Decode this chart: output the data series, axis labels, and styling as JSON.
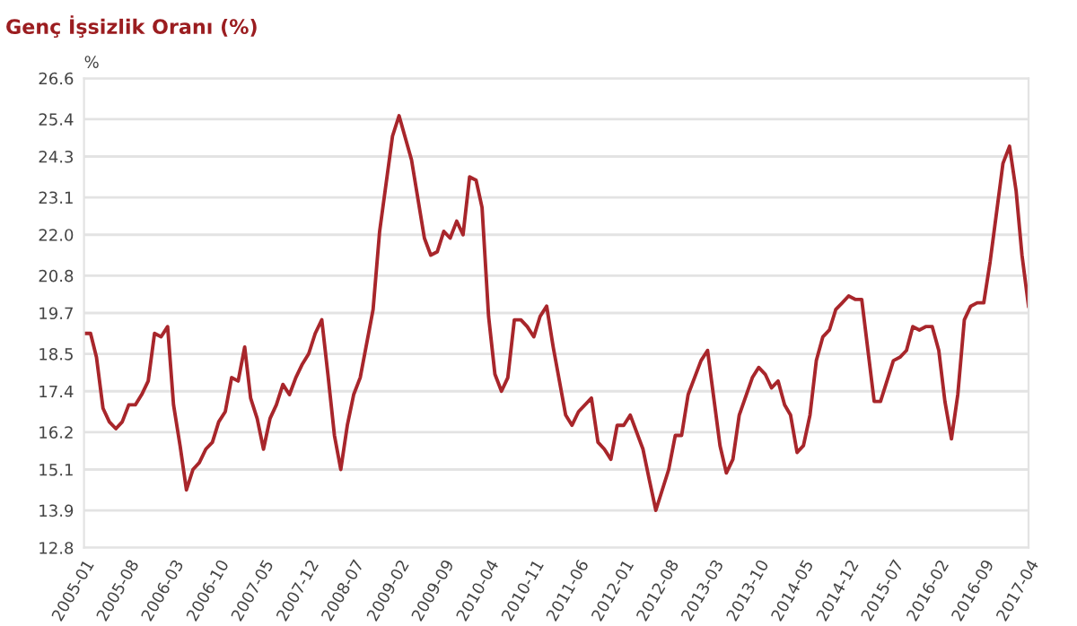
{
  "chart_data": {
    "type": "line",
    "title": "Genç İşsizlik Oranı (%)",
    "ylabel": "%",
    "x": [
      "2005-01",
      "2005-02",
      "2005-03",
      "2005-04",
      "2005-05",
      "2005-06",
      "2005-07",
      "2005-08",
      "2005-09",
      "2005-10",
      "2005-11",
      "2005-12",
      "2006-01",
      "2006-02",
      "2006-03",
      "2006-04",
      "2006-05",
      "2006-06",
      "2006-07",
      "2006-08",
      "2006-09",
      "2006-10",
      "2006-11",
      "2006-12",
      "2007-01",
      "2007-02",
      "2007-03",
      "2007-04",
      "2007-05",
      "2007-06",
      "2007-07",
      "2007-08",
      "2007-09",
      "2007-10",
      "2007-11",
      "2007-12",
      "2008-01",
      "2008-02",
      "2008-03",
      "2008-04",
      "2008-05",
      "2008-06",
      "2008-07",
      "2008-08",
      "2008-10",
      "2008-11",
      "2009-01",
      "2009-02",
      "2009-04",
      "2009-06",
      "2009-07",
      "2009-08",
      "2009-09",
      "2009-10",
      "2009-11",
      "2009-12",
      "2010-01",
      "2010-02",
      "2010-03",
      "2010-04",
      "2010-05",
      "2010-06",
      "2010-07",
      "2010-08",
      "2010-09",
      "2010-10",
      "2010-11",
      "2010-12",
      "2011-01",
      "2011-02",
      "2011-04",
      "2011-05",
      "2011-06",
      "2011-08",
      "2011-09",
      "2011-10",
      "2011-11",
      "2011-12",
      "2012-01",
      "2012-02",
      "2012-04",
      "2012-05",
      "2012-06",
      "2012-08",
      "2012-09",
      "2012-10",
      "2012-11",
      "2013-01",
      "2013-02",
      "2013-04",
      "2013-05",
      "2013-06",
      "2013-07",
      "2013-09",
      "2013-10",
      "2013-11",
      "2013-12",
      "2014-01",
      "2014-02",
      "2014-03",
      "2014-04",
      "2014-05",
      "2014-06",
      "2014-07",
      "2014-08",
      "2014-09",
      "2014-10",
      "2014-11",
      "2014-12",
      "2015-01",
      "2015-02",
      "2015-04",
      "2015-05",
      "2015-07",
      "2015-08",
      "2015-09",
      "2015-10",
      "2015-11",
      "2015-12",
      "2016-01",
      "2016-02",
      "2016-03",
      "2016-04",
      "2016-05",
      "2016-06",
      "2016-07",
      "2016-08",
      "2016-09",
      "2016-10",
      "2016-12",
      "2017-01",
      "2017-02",
      "2017-03",
      "2017-04"
    ],
    "series": [
      {
        "color": "#a8262b",
        "values": [
          19.1,
          19.1,
          18.4,
          16.9,
          16.5,
          16.3,
          16.5,
          17.0,
          17.0,
          17.3,
          17.7,
          19.1,
          19.0,
          19.3,
          17.0,
          15.8,
          14.5,
          15.1,
          15.3,
          15.7,
          15.9,
          16.5,
          16.8,
          17.8,
          17.7,
          18.7,
          17.2,
          16.6,
          15.7,
          16.6,
          17.0,
          17.6,
          17.3,
          17.8,
          18.2,
          18.5,
          19.1,
          19.5,
          17.9,
          16.1,
          15.1,
          16.4,
          17.3,
          17.8,
          19.8,
          22.1,
          24.9,
          25.5,
          24.2,
          21.9,
          21.4,
          21.5,
          22.1,
          21.9,
          22.4,
          22.0,
          23.7,
          23.6,
          22.8,
          19.6,
          17.9,
          17.4,
          17.8,
          19.5,
          19.5,
          19.3,
          19.0,
          19.6,
          19.9,
          18.7,
          16.7,
          16.4,
          16.8,
          17.2,
          15.9,
          15.7,
          15.4,
          16.4,
          16.4,
          16.7,
          15.7,
          14.8,
          13.9,
          15.1,
          16.1,
          16.1,
          17.3,
          18.3,
          18.6,
          15.8,
          15.0,
          15.4,
          16.7,
          17.8,
          18.1,
          17.9,
          17.5,
          17.7,
          17.0,
          16.7,
          15.6,
          15.8,
          16.7,
          18.3,
          19.0,
          19.2,
          19.8,
          20.0,
          20.2,
          20.1,
          20.1,
          17.1,
          17.1,
          18.3,
          18.4,
          18.6,
          19.3,
          19.2,
          19.3,
          19.3,
          18.6,
          17.1,
          16.0,
          17.3,
          19.5,
          19.9,
          20.0,
          20.0,
          21.2,
          24.1,
          24.6,
          23.3,
          21.4,
          19.9
        ]
      }
    ],
    "xlim": [
      "2005-01",
      "2017-04"
    ],
    "xticks": [
      "2005-01",
      "2005-08",
      "2006-03",
      "2006-10",
      "2007-05",
      "2007-12",
      "2008-07",
      "2009-02",
      "2009-09",
      "2010-04",
      "2010-11",
      "2011-06",
      "2012-01",
      "2012-08",
      "2013-03",
      "2013-10",
      "2014-05",
      "2014-12",
      "2015-07",
      "2016-02",
      "2016-09",
      "2017-04"
    ],
    "ylim": [
      12.8,
      26.6
    ],
    "yticks": [
      12.8,
      13.9,
      15.1,
      16.2,
      17.4,
      18.5,
      19.7,
      20.8,
      {
        "value": 22.0,
        "label": "22.0"
      },
      23.1,
      24.3,
      25.4,
      26.6
    ],
    "grid": "y",
    "marker": "none",
    "line_style": "solid"
  }
}
